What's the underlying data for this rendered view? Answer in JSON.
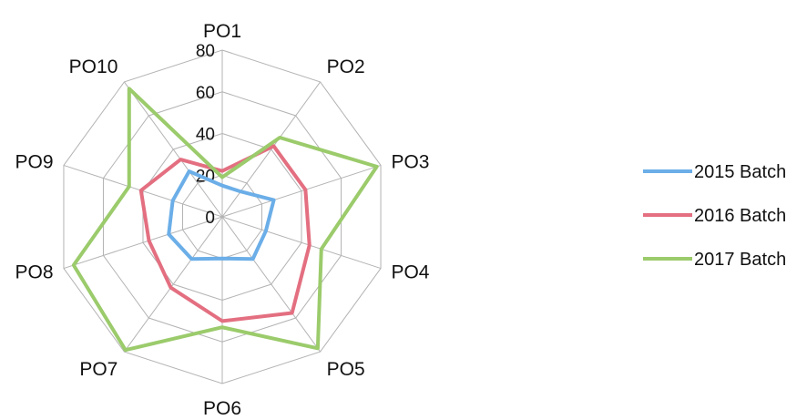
{
  "chart_data": {
    "type": "radar",
    "title": "",
    "categories": [
      "PO1",
      "PO2",
      "PO3",
      "PO4",
      "PO5",
      "PO6",
      "PO7",
      "PO8",
      "PO9",
      "PO10"
    ],
    "rlim": [
      0,
      80
    ],
    "ticks": [
      0,
      20,
      40,
      60,
      80
    ],
    "grid": true,
    "legend": "right",
    "series": [
      {
        "name": "2015 Batch",
        "color": "#6BAEE8",
        "values": [
          15,
          15,
          26,
          22,
          25,
          20,
          25,
          27,
          25,
          27
        ]
      },
      {
        "name": "2016 Batch",
        "color": "#E36F80",
        "values": [
          22,
          42,
          42,
          44,
          57,
          50,
          42,
          37,
          41,
          34
        ]
      },
      {
        "name": "2017 Batch",
        "color": "#9BCB6B",
        "values": [
          19,
          47,
          78,
          50,
          78,
          53,
          79,
          75,
          47,
          76
        ]
      }
    ]
  }
}
